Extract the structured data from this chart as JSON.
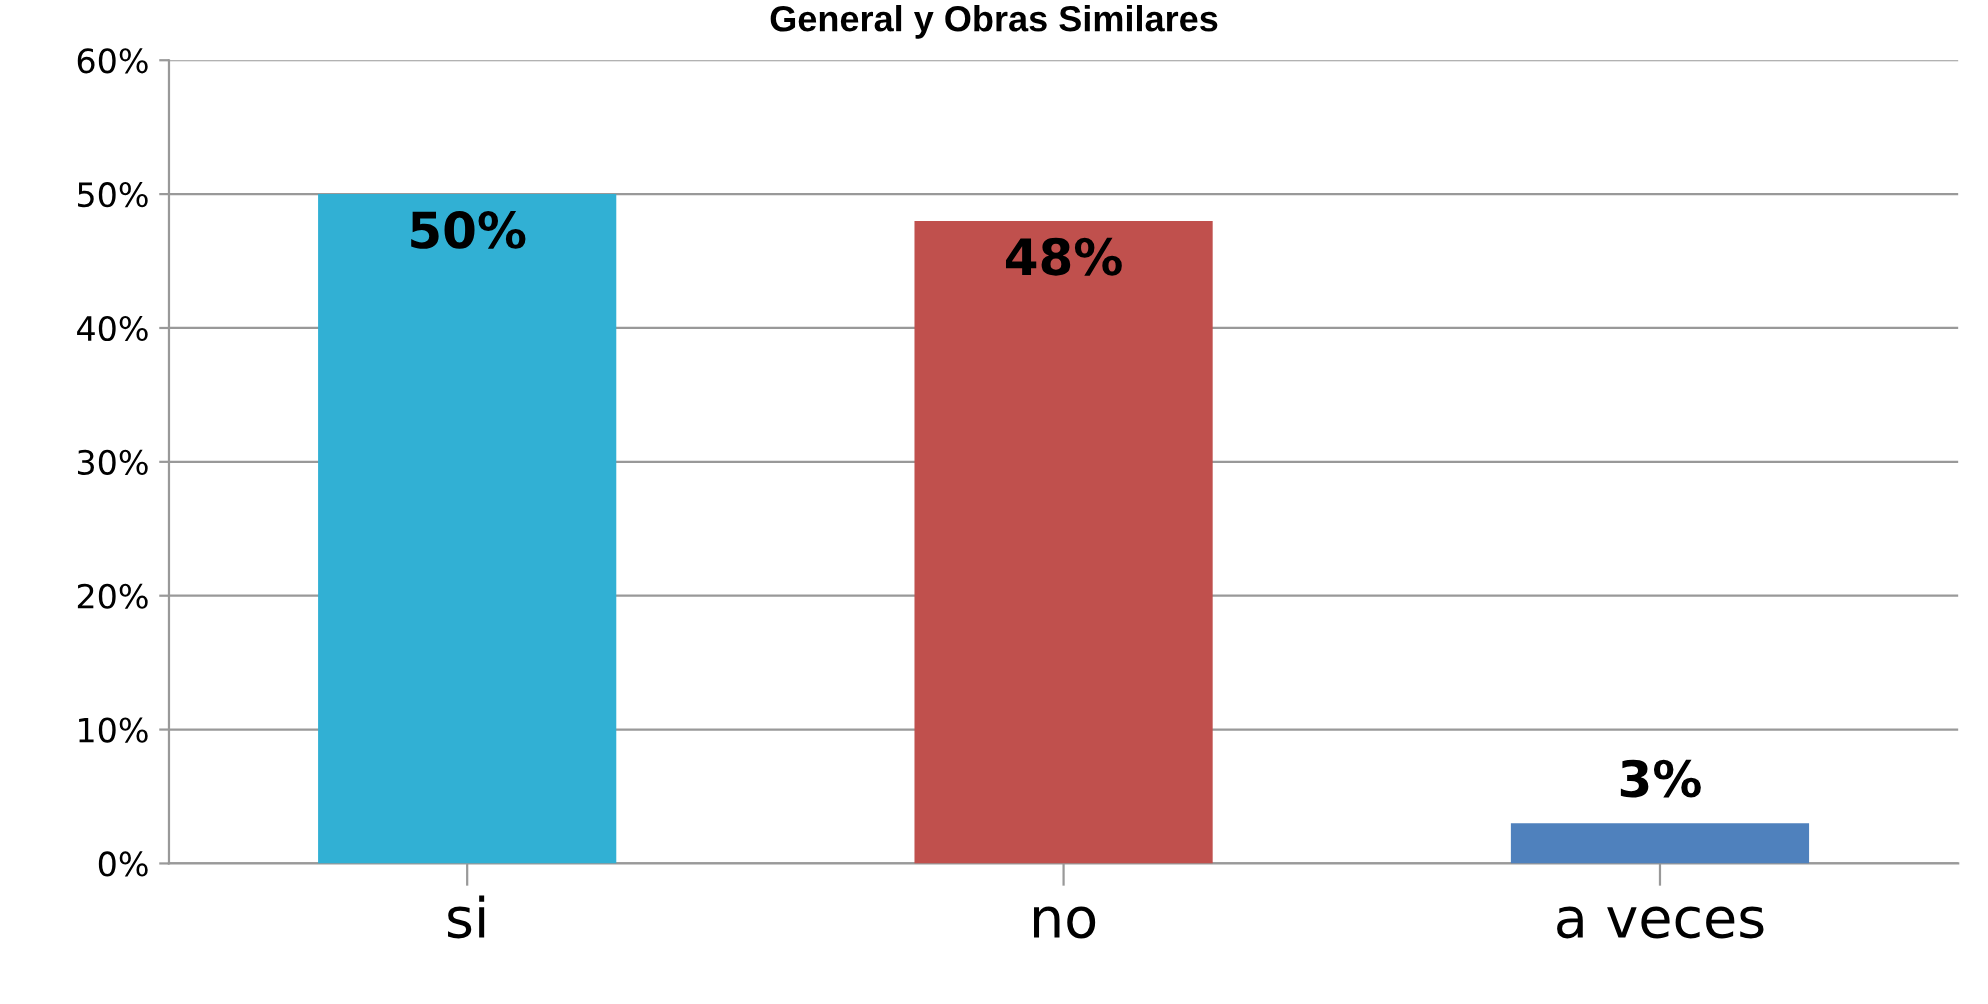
{
  "chart_data": {
    "type": "bar",
    "title": "General y Obras Similares",
    "categories": [
      "si",
      "no",
      "a veces"
    ],
    "values": [
      50,
      48,
      3
    ],
    "colors": [
      "#31b0d4",
      "#c0504d",
      "#4f81bd"
    ],
    "value_labels": [
      "50%",
      "48%",
      "3%"
    ],
    "ylim": [
      0,
      60
    ],
    "yticks": [
      {
        "value": 0,
        "label": "0%"
      },
      {
        "value": 10,
        "label": "10%"
      },
      {
        "value": 20,
        "label": "20%"
      },
      {
        "value": 30,
        "label": "30%"
      },
      {
        "value": 40,
        "label": "40%"
      },
      {
        "value": 50,
        "label": "50%"
      },
      {
        "value": 60,
        "label": "60%"
      }
    ],
    "grid": "y",
    "legend": false
  }
}
